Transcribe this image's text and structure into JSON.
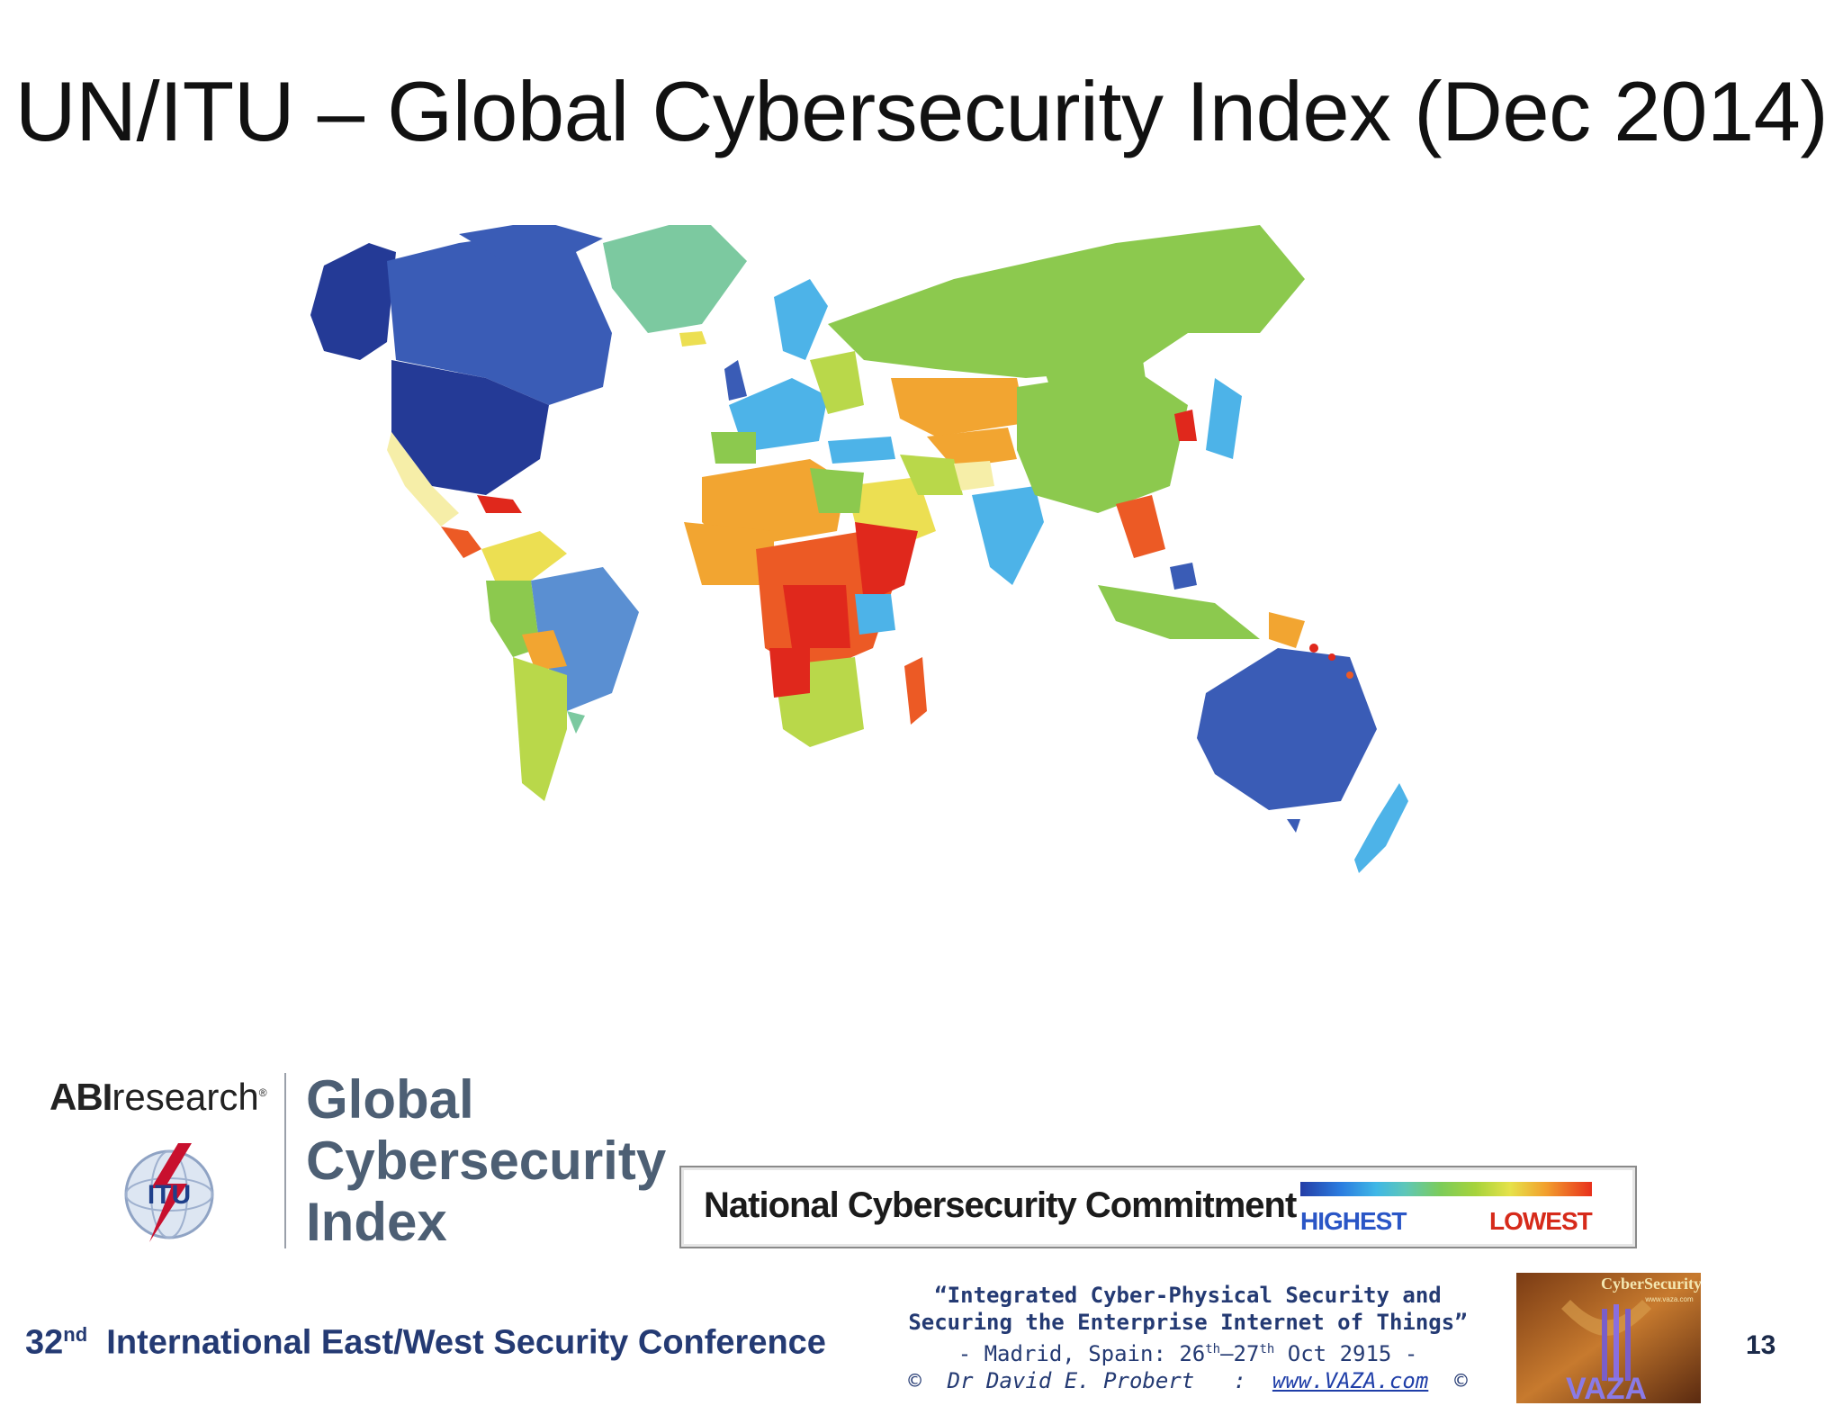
{
  "slide": {
    "title": "UN/ITU – Global Cybersecurity Index (Dec 2014)",
    "page_number": "13"
  },
  "logos": {
    "abi_bold": "ABI",
    "abi_rest": "research",
    "abi_mark": "®",
    "itu": "ITU",
    "gci_line1": "Global",
    "gci_line2": "Cybersecurity",
    "gci_line3": "Index",
    "vaza_top": "CyberSecurity",
    "vaza_url": "www.vaza.com",
    "vaza_bottom": "VAZA"
  },
  "legend": {
    "label": "National Cybersecurity Commitment",
    "highest": "HIGHEST",
    "lowest": "LOWEST",
    "gradient_colors": [
      "#243da6",
      "#2b7de0",
      "#3fb7e6",
      "#5ec7b8",
      "#7ccc5a",
      "#a6d33c",
      "#e6e24a",
      "#f2a12e",
      "#e8301c"
    ]
  },
  "footer": {
    "conference_num": "32",
    "conference_sup": "nd",
    "conference_name": "International East/West Security Conference",
    "quote_line1": "“Integrated Cyber-Physical Security and",
    "quote_line2": "Securing the Enterprise Internet of Things”",
    "venue_prefix": "- Madrid, Spain: 26",
    "venue_sup1": "th",
    "venue_mid": "–27",
    "venue_sup2": "th",
    "venue_suffix": " Oct 2915 -",
    "copyright_prefix": "©  Dr David E. Probert   :  ",
    "copyright_link": "www.VAZA.com",
    "copyright_suffix": "  ©"
  },
  "map": {
    "colors": {
      "highest": "#243a96",
      "very_high": "#3a5cb6",
      "high": "#5a8fd2",
      "light_blue": "#4db3e8",
      "teal": "#7cc9a0",
      "green": "#8cc94e",
      "yellow_green": "#b9d84a",
      "yellow": "#ecdf52",
      "pale_yellow": "#f6eea8",
      "orange": "#f2a531",
      "red_orange": "#ec5a25",
      "red": "#e0281c"
    }
  }
}
